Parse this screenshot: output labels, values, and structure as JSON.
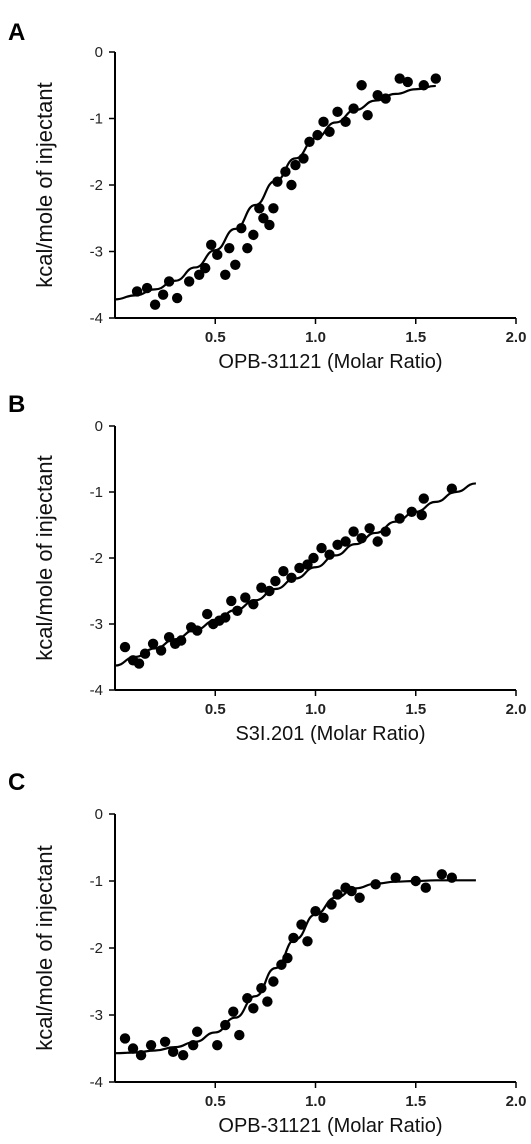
{
  "chart_data": [
    {
      "type": "scatter",
      "panel_label": "A",
      "title": "",
      "xlabel": "OPB-31121 (Molar Ratio)",
      "ylabel": "kcal/mole of injectant",
      "xlim": [
        0,
        2.0
      ],
      "ylim": [
        -4,
        0
      ],
      "xticks": [
        0.5,
        1.0,
        1.5,
        2.0
      ],
      "xtick_labels": [
        "0.5",
        "1.0",
        "1.5",
        "2.0"
      ],
      "yticks": [
        0,
        -1,
        -2,
        -3,
        -4
      ],
      "ytick_labels": [
        "0",
        "-1",
        "-2",
        "-3",
        "-4"
      ],
      "grid": false,
      "series": [
        {
          "x": [
            0.11,
            0.16,
            0.2,
            0.24,
            0.27,
            0.31,
            0.37,
            0.42,
            0.45,
            0.48,
            0.51,
            0.55,
            0.57,
            0.6,
            0.63,
            0.66,
            0.69,
            0.72,
            0.74,
            0.77,
            0.79,
            0.81,
            0.85,
            0.88,
            0.9,
            0.94,
            0.97,
            1.01,
            1.04,
            1.07,
            1.11,
            1.15,
            1.19,
            1.23,
            1.26,
            1.31,
            1.35,
            1.42,
            1.46,
            1.54,
            1.6
          ],
          "y": [
            -3.6,
            -3.55,
            -3.8,
            -3.65,
            -3.45,
            -3.7,
            -3.45,
            -3.35,
            -3.25,
            -2.9,
            -3.05,
            -3.35,
            -2.95,
            -3.2,
            -2.65,
            -2.95,
            -2.75,
            -2.35,
            -2.5,
            -2.6,
            -2.35,
            -1.95,
            -1.8,
            -2.0,
            -1.7,
            -1.6,
            -1.35,
            -1.25,
            -1.05,
            -1.2,
            -0.9,
            -1.05,
            -0.85,
            -0.5,
            -0.95,
            -0.65,
            -0.7,
            -0.4,
            -0.45,
            -0.5,
            -0.4
          ],
          "color": "#000000"
        }
      ],
      "fit": {
        "x": [
          0,
          0.1,
          0.2,
          0.3,
          0.4,
          0.5,
          0.6,
          0.7,
          0.8,
          0.9,
          1.0,
          1.1,
          1.2,
          1.3,
          1.4,
          1.5,
          1.6
        ],
        "y": [
          -3.72,
          -3.66,
          -3.57,
          -3.44,
          -3.24,
          -2.98,
          -2.66,
          -2.3,
          -1.94,
          -1.6,
          -1.3,
          -1.06,
          -0.87,
          -0.73,
          -0.63,
          -0.56,
          -0.51
        ]
      }
    },
    {
      "type": "scatter",
      "panel_label": "B",
      "title": "",
      "xlabel": "S3I.201 (Molar Ratio)",
      "ylabel": "kcal/mole of injectant",
      "xlim": [
        0,
        2.0
      ],
      "ylim": [
        -4,
        0
      ],
      "xticks": [
        0.5,
        1.0,
        1.5,
        2.0
      ],
      "xtick_labels": [
        "0.5",
        "1.0",
        "1.5",
        "2.0"
      ],
      "yticks": [
        0,
        -1,
        -2,
        -3,
        -4
      ],
      "ytick_labels": [
        "0",
        "-1",
        "-2",
        "-3",
        "-4"
      ],
      "grid": false,
      "series": [
        {
          "x": [
            0.05,
            0.09,
            0.12,
            0.15,
            0.19,
            0.23,
            0.27,
            0.3,
            0.33,
            0.38,
            0.41,
            0.46,
            0.49,
            0.52,
            0.55,
            0.58,
            0.61,
            0.65,
            0.69,
            0.73,
            0.77,
            0.8,
            0.84,
            0.88,
            0.92,
            0.96,
            0.99,
            1.03,
            1.07,
            1.11,
            1.15,
            1.19,
            1.23,
            1.27,
            1.31,
            1.35,
            1.42,
            1.48,
            1.53,
            1.54,
            1.68
          ],
          "y": [
            -3.35,
            -3.55,
            -3.6,
            -3.45,
            -3.3,
            -3.4,
            -3.2,
            -3.3,
            -3.25,
            -3.05,
            -3.1,
            -2.85,
            -3.0,
            -2.95,
            -2.9,
            -2.65,
            -2.8,
            -2.6,
            -2.7,
            -2.45,
            -2.5,
            -2.35,
            -2.2,
            -2.3,
            -2.15,
            -2.1,
            -2.0,
            -1.85,
            -1.95,
            -1.8,
            -1.75,
            -1.6,
            -1.7,
            -1.55,
            -1.75,
            -1.6,
            -1.4,
            -1.3,
            -1.35,
            -1.1,
            -0.95
          ],
          "color": "#000000"
        }
      ],
      "fit": {
        "x": [
          0,
          0.1,
          0.2,
          0.3,
          0.4,
          0.5,
          0.6,
          0.7,
          0.8,
          0.9,
          1.0,
          1.1,
          1.2,
          1.3,
          1.4,
          1.5,
          1.6,
          1.7,
          1.8
        ],
        "y": [
          -3.63,
          -3.5,
          -3.37,
          -3.23,
          -3.09,
          -2.95,
          -2.79,
          -2.64,
          -2.47,
          -2.31,
          -2.14,
          -1.96,
          -1.79,
          -1.62,
          -1.45,
          -1.3,
          -1.15,
          -1.0,
          -0.87
        ]
      }
    },
    {
      "type": "scatter",
      "panel_label": "C",
      "title": "",
      "xlabel": "OPB-31121 (Molar Ratio)",
      "ylabel": "kcal/mole of injectant",
      "xlim": [
        0,
        2.0
      ],
      "ylim": [
        -4,
        0
      ],
      "xticks": [
        0.5,
        1.0,
        1.5,
        2.0
      ],
      "xtick_labels": [
        "0.5",
        "1.0",
        "1.5",
        "2.0"
      ],
      "yticks": [
        0,
        -1,
        -2,
        -3,
        -4
      ],
      "ytick_labels": [
        "0",
        "-1",
        "-2",
        "-3",
        "-4"
      ],
      "grid": false,
      "series": [
        {
          "x": [
            0.05,
            0.09,
            0.13,
            0.18,
            0.25,
            0.29,
            0.34,
            0.39,
            0.41,
            0.51,
            0.55,
            0.59,
            0.62,
            0.66,
            0.69,
            0.73,
            0.76,
            0.79,
            0.83,
            0.86,
            0.89,
            0.93,
            0.96,
            1.0,
            1.04,
            1.08,
            1.11,
            1.15,
            1.18,
            1.22,
            1.3,
            1.4,
            1.5,
            1.55,
            1.63,
            1.68
          ],
          "y": [
            -3.35,
            -3.5,
            -3.6,
            -3.45,
            -3.4,
            -3.55,
            -3.6,
            -3.45,
            -3.25,
            -3.45,
            -3.15,
            -2.95,
            -3.3,
            -2.75,
            -2.9,
            -2.6,
            -2.8,
            -2.5,
            -2.25,
            -2.15,
            -1.85,
            -1.65,
            -1.9,
            -1.45,
            -1.55,
            -1.35,
            -1.2,
            -1.1,
            -1.15,
            -1.25,
            -1.05,
            -0.95,
            -1.0,
            -1.1,
            -0.9,
            -0.95
          ],
          "color": "#000000"
        }
      ],
      "fit": {
        "x": [
          0,
          0.1,
          0.2,
          0.3,
          0.4,
          0.5,
          0.6,
          0.7,
          0.8,
          0.9,
          1.0,
          1.1,
          1.2,
          1.3,
          1.4,
          1.5,
          1.6,
          1.7,
          1.8
        ],
        "y": [
          -3.57,
          -3.56,
          -3.53,
          -3.48,
          -3.4,
          -3.26,
          -3.04,
          -2.72,
          -2.3,
          -1.87,
          -1.5,
          -1.25,
          -1.11,
          -1.04,
          -1.01,
          -1.0,
          -0.99,
          -0.99,
          -0.99
        ]
      }
    }
  ]
}
